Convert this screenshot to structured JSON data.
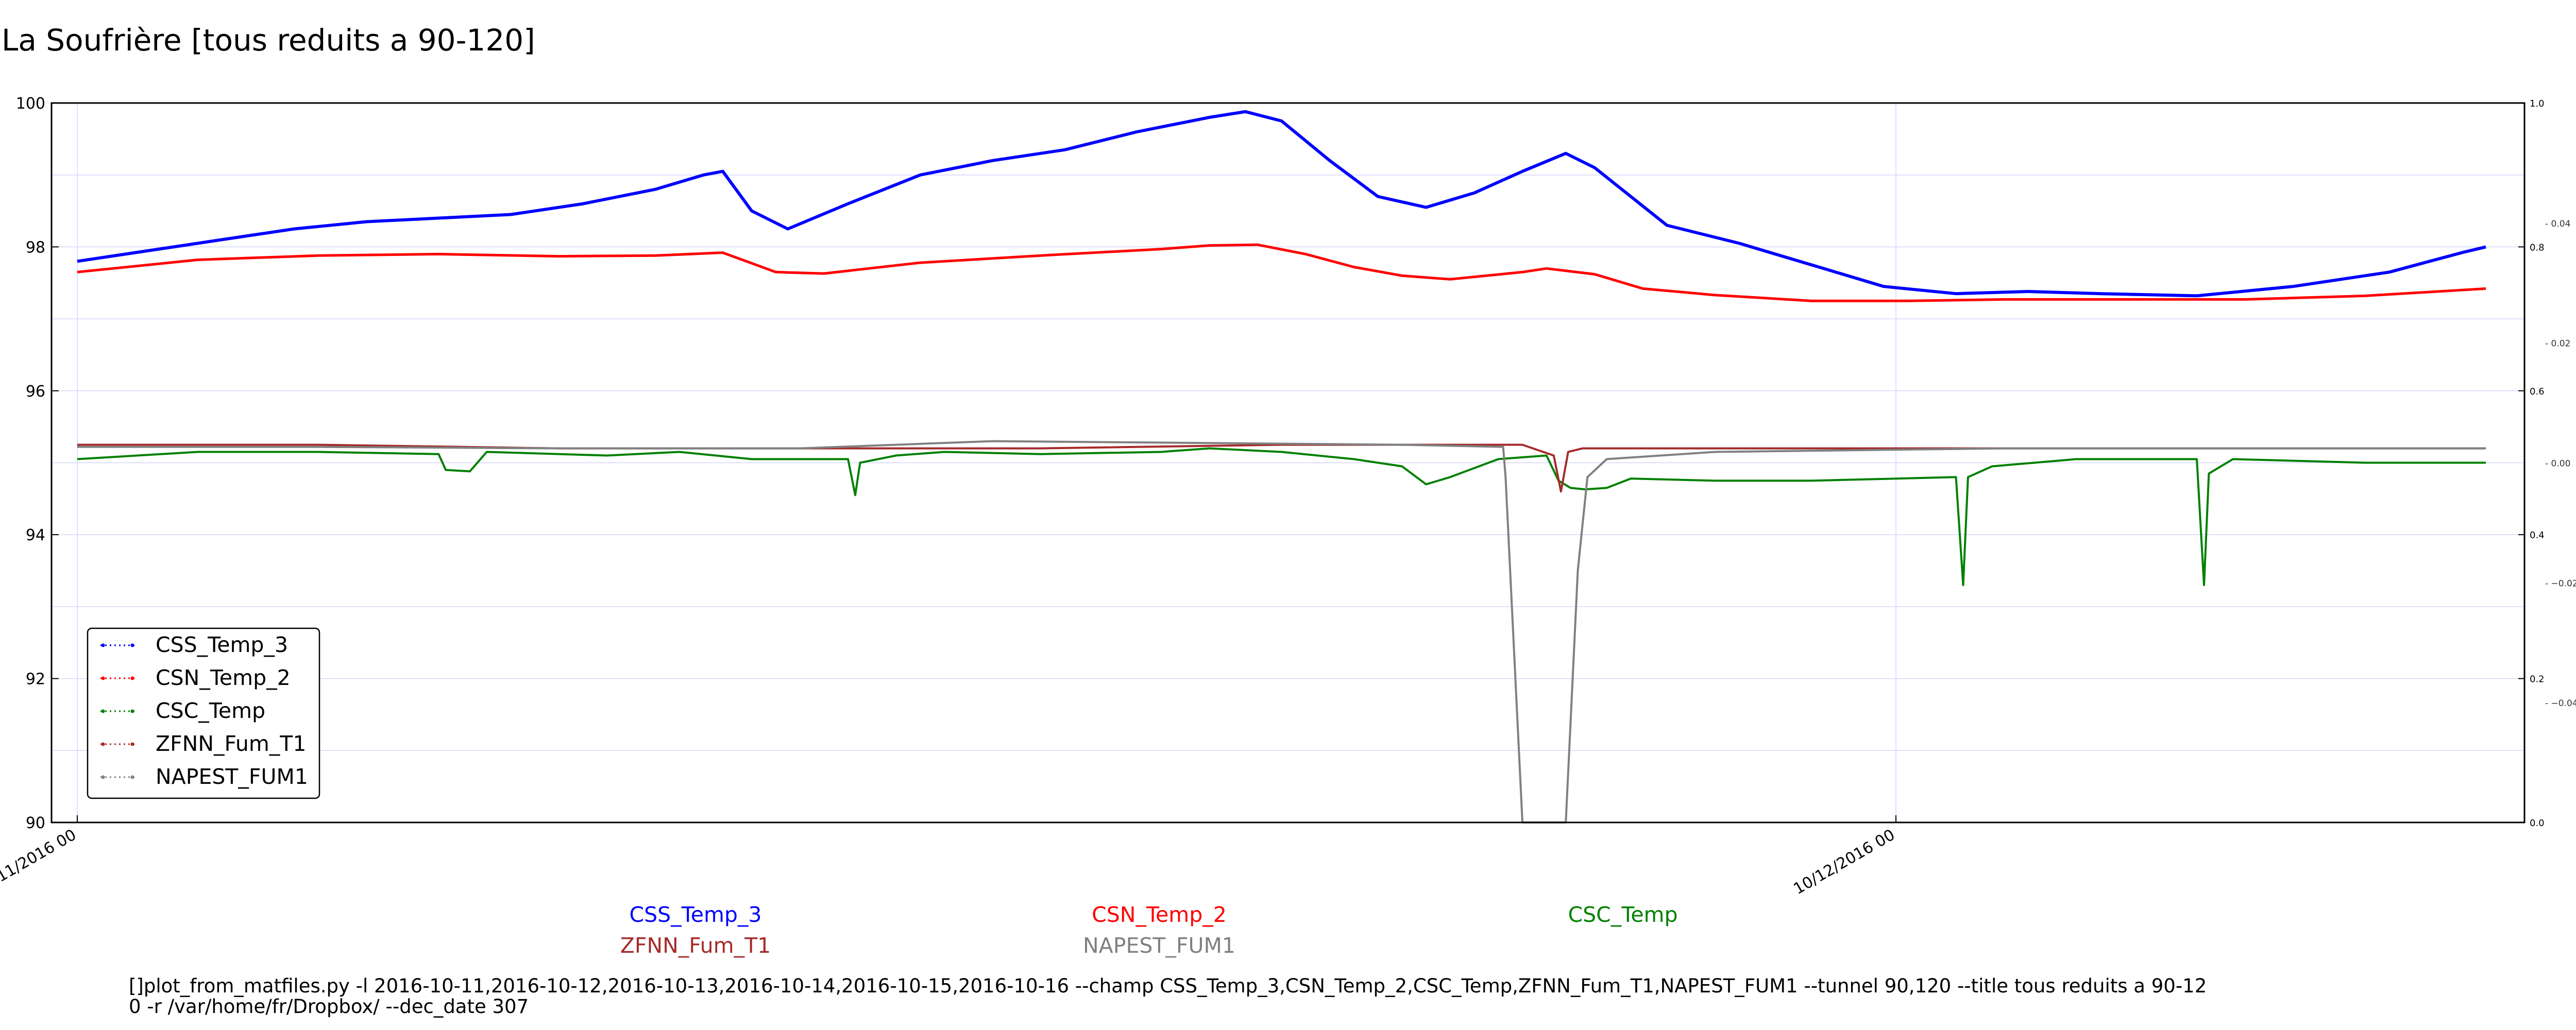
{
  "chart_data": {
    "type": "line",
    "title": "La Soufrière [tous reduits a 90-120]",
    "left_axis": {
      "ylim": [
        90,
        100
      ],
      "ticks": [
        "90",
        "92",
        "94",
        "96",
        "98",
        "100"
      ]
    },
    "right_axis": {
      "major_ticks": [
        "0.0",
        "0.2",
        "0.4",
        "0.6",
        "0.8",
        "1.0"
      ],
      "minor_ticks": [
        "−0.04",
        "−0.02",
        "0.00",
        "0.02",
        "0.04"
      ]
    },
    "x_ticks": [
      "11/2016 00",
      "10/12/2016 00"
    ],
    "grid": true,
    "legend_position": "lower-left",
    "series": [
      {
        "name": "CSS_Temp_3",
        "color": "#0000ff",
        "points": [
          [
            0,
            97.8
          ],
          [
            3,
            97.95
          ],
          [
            6,
            98.1
          ],
          [
            9,
            98.25
          ],
          [
            12,
            98.35
          ],
          [
            15,
            98.4
          ],
          [
            18,
            98.45
          ],
          [
            21,
            98.6
          ],
          [
            24,
            98.8
          ],
          [
            26,
            99.0
          ],
          [
            26.8,
            99.05
          ],
          [
            28,
            98.5
          ],
          [
            29.5,
            98.25
          ],
          [
            32,
            98.6
          ],
          [
            35,
            99.0
          ],
          [
            38,
            99.2
          ],
          [
            41,
            99.35
          ],
          [
            44,
            99.6
          ],
          [
            47,
            99.8
          ],
          [
            48.5,
            99.88
          ],
          [
            50,
            99.75
          ],
          [
            52,
            99.2
          ],
          [
            54,
            98.7
          ],
          [
            56,
            98.55
          ],
          [
            58,
            98.75
          ],
          [
            60,
            99.05
          ],
          [
            61.8,
            99.3
          ],
          [
            63,
            99.1
          ],
          [
            66,
            98.3
          ],
          [
            69,
            98.05
          ],
          [
            72,
            97.75
          ],
          [
            75,
            97.45
          ],
          [
            78,
            97.35
          ],
          [
            81,
            97.38
          ],
          [
            84,
            97.35
          ],
          [
            88,
            97.32
          ],
          [
            92,
            97.45
          ],
          [
            96,
            97.65
          ],
          [
            99,
            97.92
          ],
          [
            100,
            98.0
          ]
        ]
      },
      {
        "name": "CSN_Temp_2",
        "color": "#ff0000",
        "points": [
          [
            0,
            97.65
          ],
          [
            5,
            97.82
          ],
          [
            10,
            97.88
          ],
          [
            15,
            97.9
          ],
          [
            20,
            97.87
          ],
          [
            24,
            97.88
          ],
          [
            26.8,
            97.92
          ],
          [
            29,
            97.65
          ],
          [
            31,
            97.63
          ],
          [
            35,
            97.78
          ],
          [
            40,
            97.88
          ],
          [
            45,
            97.97
          ],
          [
            47,
            98.02
          ],
          [
            49,
            98.03
          ],
          [
            51,
            97.9
          ],
          [
            53,
            97.72
          ],
          [
            55,
            97.6
          ],
          [
            57,
            97.55
          ],
          [
            60,
            97.65
          ],
          [
            61,
            97.7
          ],
          [
            63,
            97.62
          ],
          [
            65,
            97.42
          ],
          [
            68,
            97.33
          ],
          [
            72,
            97.25
          ],
          [
            76,
            97.25
          ],
          [
            80,
            97.27
          ],
          [
            85,
            97.27
          ],
          [
            90,
            97.27
          ],
          [
            95,
            97.32
          ],
          [
            100,
            97.42
          ]
        ]
      },
      {
        "name": "CSC_Temp",
        "color": "#008000",
        "points": [
          [
            0,
            95.05
          ],
          [
            5,
            95.15
          ],
          [
            10,
            95.15
          ],
          [
            15,
            95.12
          ],
          [
            15.3,
            94.9
          ],
          [
            16.3,
            94.88
          ],
          [
            17,
            95.15
          ],
          [
            22,
            95.1
          ],
          [
            25,
            95.15
          ],
          [
            28,
            95.05
          ],
          [
            32,
            95.05
          ],
          [
            32.3,
            94.55
          ],
          [
            32.5,
            95.0
          ],
          [
            34,
            95.1
          ],
          [
            36,
            95.15
          ],
          [
            40,
            95.12
          ],
          [
            45,
            95.15
          ],
          [
            47,
            95.2
          ],
          [
            50,
            95.15
          ],
          [
            53,
            95.05
          ],
          [
            55,
            94.95
          ],
          [
            56,
            94.7
          ],
          [
            57,
            94.8
          ],
          [
            59,
            95.05
          ],
          [
            61,
            95.1
          ],
          [
            61.5,
            94.75
          ],
          [
            62,
            94.65
          ],
          [
            62.6,
            94.63
          ],
          [
            63.5,
            94.65
          ],
          [
            64.5,
            94.78
          ],
          [
            68,
            94.75
          ],
          [
            72,
            94.75
          ],
          [
            78,
            94.8
          ],
          [
            78.3,
            93.3
          ],
          [
            78.5,
            94.8
          ],
          [
            79.5,
            94.95
          ],
          [
            83,
            95.05
          ],
          [
            88,
            95.05
          ],
          [
            88.3,
            93.3
          ],
          [
            88.5,
            94.85
          ],
          [
            89.5,
            95.05
          ],
          [
            95,
            95.0
          ],
          [
            100,
            95.0
          ]
        ]
      },
      {
        "name": "ZFNN_Fum_T1",
        "color": "#a52a2a",
        "points": [
          [
            0,
            95.25
          ],
          [
            10,
            95.25
          ],
          [
            20,
            95.2
          ],
          [
            30,
            95.2
          ],
          [
            40,
            95.2
          ],
          [
            50,
            95.25
          ],
          [
            60,
            95.25
          ],
          [
            61.3,
            95.1
          ],
          [
            61.6,
            94.6
          ],
          [
            61.9,
            95.15
          ],
          [
            62.5,
            95.2
          ],
          [
            70,
            95.2
          ],
          [
            80,
            95.2
          ],
          [
            90,
            95.2
          ],
          [
            100,
            95.2
          ]
        ]
      },
      {
        "name": "NAPEST_FUM1",
        "color": "#808080",
        "points": [
          [
            0,
            95.22
          ],
          [
            10,
            95.22
          ],
          [
            20,
            95.2
          ],
          [
            30,
            95.2
          ],
          [
            38,
            95.3
          ],
          [
            45,
            95.28
          ],
          [
            55,
            95.25
          ],
          [
            59.2,
            95.22
          ],
          [
            59.3,
            94.8
          ],
          [
            60,
            90.0
          ],
          [
            61.8,
            90.0
          ],
          [
            62.3,
            93.5
          ],
          [
            62.7,
            94.8
          ],
          [
            63.5,
            95.05
          ],
          [
            68,
            95.15
          ],
          [
            80,
            95.2
          ],
          [
            90,
            95.2
          ],
          [
            100,
            95.2
          ]
        ]
      }
    ],
    "plot_labels_row1": [
      "CSS_Temp_3",
      "CSN_Temp_2",
      "CSC_Temp"
    ],
    "plot_labels_row2": [
      "ZFNN_Fum_T1",
      "NAPEST_FUM1"
    ]
  },
  "footer": {
    "line1": "[]plot_from_matfiles.py -l 2016-10-11,2016-10-12,2016-10-13,2016-10-14,2016-10-15,2016-10-16 --champ CSS_Temp_3,CSN_Temp_2,CSC_Temp,ZFNN_Fum_T1,NAPEST_FUM1 --tunnel 90,120 --title tous reduits a 90-12",
    "line2": "0 -r /var/home/fr/Dropbox/ --dec_date 307"
  }
}
